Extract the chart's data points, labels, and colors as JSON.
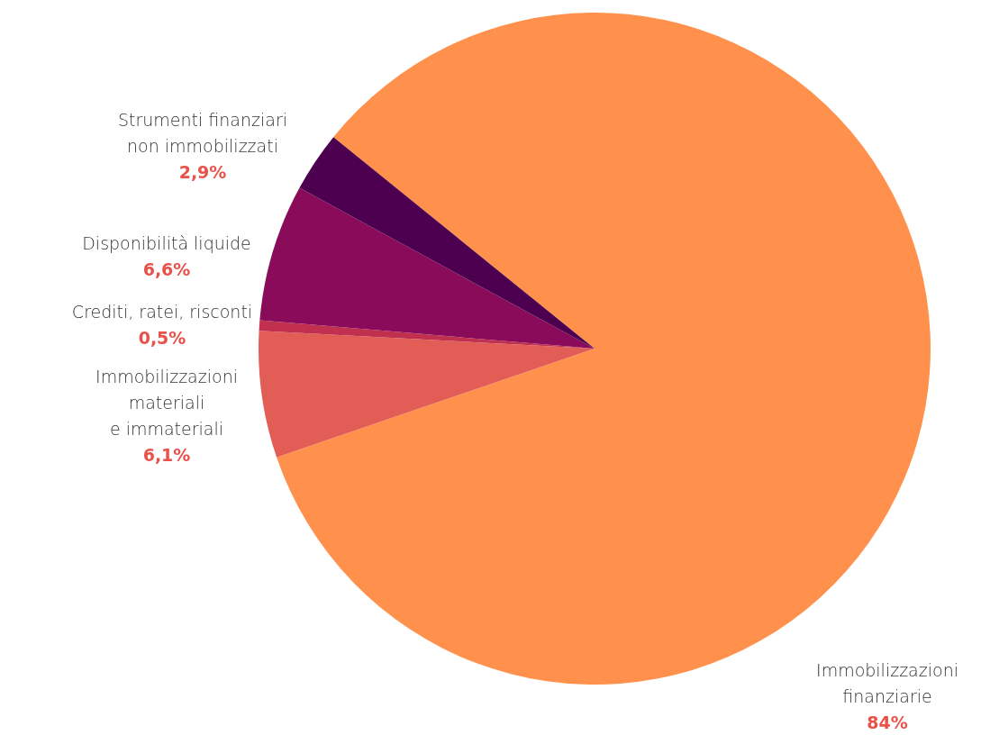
{
  "chart_data": {
    "type": "pie",
    "categories": [
      "Immobilizzazioni\nfinanziarie",
      "Immobilizzazioni\nmateriali\ne immateriali",
      "Crediti, ratei, risconti",
      "Disponibilità liquide",
      "Strumenti finanziari\nnon immobilizzati"
    ],
    "values": [
      84,
      6.1,
      0.5,
      6.6,
      2.9
    ],
    "colors": [
      "#ff914d",
      "#e35d57",
      "#c2304f",
      "#8a0b5a",
      "#4d004f"
    ],
    "value_labels": [
      "84%",
      "6,1%",
      "0,5%",
      "6,6%",
      "2,9%"
    ]
  }
}
